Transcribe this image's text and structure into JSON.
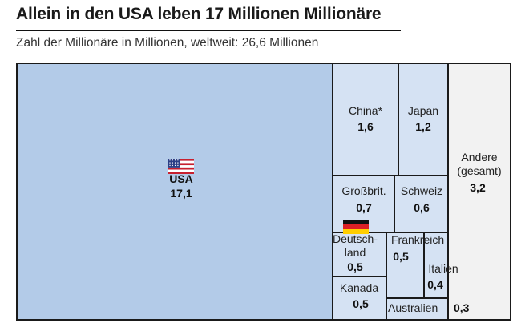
{
  "title": "Allein in den USA leben 17 Millionen Millionäre",
  "subtitle": "Zahl der Millionäre in Millionen, weltweit: 26,6 Millionen",
  "colors": {
    "usa_fill": "#b3cbe8",
    "country_fill": "#d5e2f3",
    "other_fill": "#f2f2f2",
    "border": "#1a1a1a"
  },
  "chart_data": {
    "type": "treemap",
    "unit": "Millionen",
    "total": 26.6,
    "items": [
      {
        "id": "usa",
        "label": "USA",
        "value": 17.1,
        "display_value": "17,1",
        "flag": "us-flag-icon"
      },
      {
        "id": "china",
        "label": "China*",
        "value": 1.6,
        "display_value": "1,6"
      },
      {
        "id": "japan",
        "label": "Japan",
        "value": 1.2,
        "display_value": "1,2"
      },
      {
        "id": "andere",
        "label": "Andere (gesamt)",
        "label_lines": [
          "Andere",
          "(gesamt)"
        ],
        "value": 3.2,
        "display_value": "3,2"
      },
      {
        "id": "grossbritannien",
        "label": "Großbrit.",
        "value": 0.7,
        "display_value": "0,7"
      },
      {
        "id": "schweiz",
        "label": "Schweiz",
        "value": 0.6,
        "display_value": "0,6"
      },
      {
        "id": "deutschland",
        "label": "Deutschland",
        "label_lines": [
          "Deutsch-",
          "land"
        ],
        "value": 0.5,
        "display_value": "0,5",
        "flag": "german-flag-icon"
      },
      {
        "id": "frankreich",
        "label": "Frankreich",
        "value": 0.5,
        "display_value": "0,5"
      },
      {
        "id": "italien",
        "label": "Italien",
        "value": 0.4,
        "display_value": "0,4"
      },
      {
        "id": "kanada",
        "label": "Kanada",
        "value": 0.5,
        "display_value": "0,5"
      },
      {
        "id": "australien",
        "label": "Australien",
        "value": 0.3,
        "display_value": "0,3"
      }
    ]
  }
}
